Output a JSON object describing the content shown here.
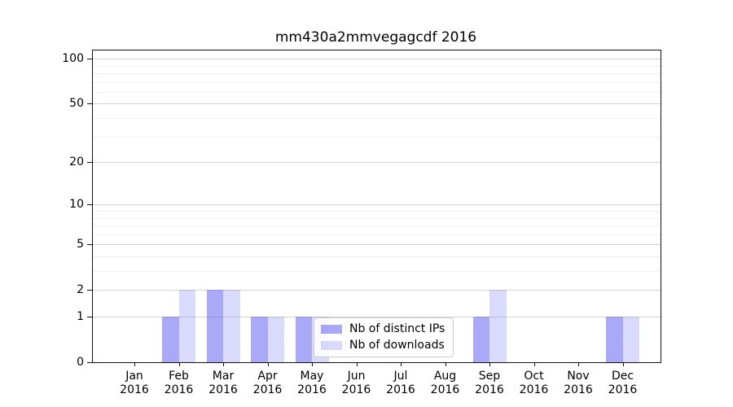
{
  "chart_data": {
    "type": "bar",
    "title": "mm430a2mmvegagcdf 2016",
    "x_tick_months": [
      "Jan",
      "Feb",
      "Mar",
      "Apr",
      "May",
      "Jun",
      "Jul",
      "Aug",
      "Sep",
      "Oct",
      "Nov",
      "Dec"
    ],
    "x_tick_year": "2016",
    "series": [
      {
        "name": "Nb of distinct IPs",
        "color": "#a9a9f7",
        "fill": "rgba(80,80,240,0.49)",
        "values": [
          0,
          1,
          2,
          1,
          1,
          0,
          0,
          0,
          1,
          0,
          0,
          1
        ]
      },
      {
        "name": "Nb of downloads",
        "color": "#dadaf8",
        "fill": "rgba(80,80,240,0.21)",
        "values": [
          0,
          2,
          2,
          1,
          1,
          0,
          0,
          0,
          2,
          0,
          0,
          1
        ]
      }
    ],
    "y_ticks": [
      0,
      1,
      2,
      5,
      10,
      20,
      50,
      100
    ],
    "y_scale": "log10(1+v)",
    "ylim": [
      0,
      113
    ],
    "grid": {
      "horizontal_values": [
        1,
        2,
        3,
        4,
        5,
        6,
        7,
        8,
        9,
        10,
        20,
        30,
        40,
        50,
        60,
        70,
        80,
        90,
        100
      ],
      "major_values": [
        1,
        2,
        5,
        10,
        20,
        50,
        100
      ],
      "minor_color": "#f0f0f0",
      "major_color": "#d4d4d4"
    },
    "legend_position": "lower-center",
    "background_color": "#ffffff",
    "spine_color": "#111111"
  }
}
